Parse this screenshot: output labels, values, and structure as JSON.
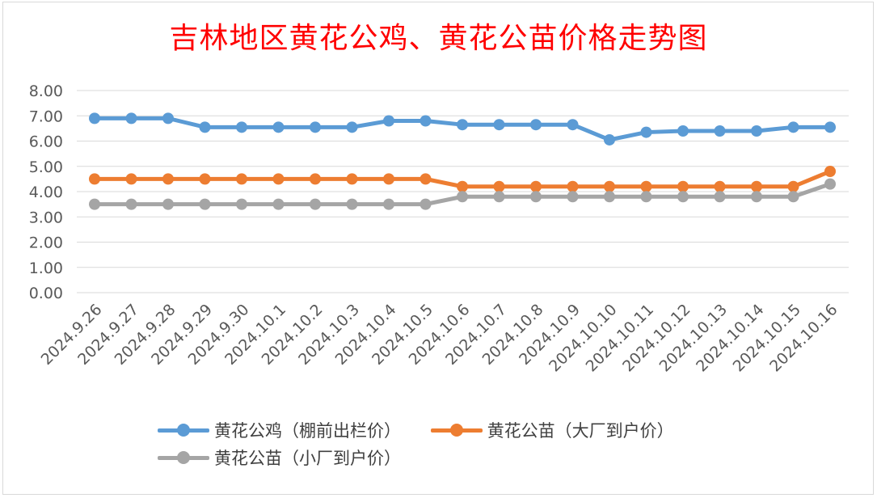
{
  "chart_data": {
    "type": "line",
    "title": "吉林地区黄花公鸡、黄花公苗价格走势图",
    "categories": [
      "2024.9.26",
      "2024.9.27",
      "2024.9.28",
      "2024.9.29",
      "2024.9.30",
      "2024.10.1",
      "2024.10.2",
      "2024.10.3",
      "2024.10.4",
      "2024.10.5",
      "2024.10.6",
      "2024.10.7",
      "2024.10.8",
      "2024.10.9",
      "2024.10.10",
      "2024.10.11",
      "2024.10.12",
      "2024.10.13",
      "2024.10.14",
      "2024.10.15",
      "2024.10.16"
    ],
    "y_ticks": [
      "0.00",
      "1.00",
      "2.00",
      "3.00",
      "4.00",
      "5.00",
      "6.00",
      "7.00",
      "8.00"
    ],
    "ylim": [
      0,
      8
    ],
    "grid": true,
    "legend_position": "bottom",
    "series": [
      {
        "name": "黄花公鸡（棚前出栏价）",
        "color": "#5b9bd5",
        "values": [
          6.9,
          6.9,
          6.9,
          6.55,
          6.55,
          6.55,
          6.55,
          6.55,
          6.8,
          6.8,
          6.65,
          6.65,
          6.65,
          6.65,
          6.05,
          6.35,
          6.4,
          6.4,
          6.4,
          6.55,
          6.55
        ]
      },
      {
        "name": "黄花公苗（大厂到户价）",
        "color": "#ed7d31",
        "values": [
          4.5,
          4.5,
          4.5,
          4.5,
          4.5,
          4.5,
          4.5,
          4.5,
          4.5,
          4.5,
          4.2,
          4.2,
          4.2,
          4.2,
          4.2,
          4.2,
          4.2,
          4.2,
          4.2,
          4.2,
          4.8
        ]
      },
      {
        "name": "黄花公苗（小厂到户价）",
        "color": "#a5a5a5",
        "values": [
          3.5,
          3.5,
          3.5,
          3.5,
          3.5,
          3.5,
          3.5,
          3.5,
          3.5,
          3.5,
          3.8,
          3.8,
          3.8,
          3.8,
          3.8,
          3.8,
          3.8,
          3.8,
          3.8,
          3.8,
          4.3
        ]
      }
    ]
  }
}
